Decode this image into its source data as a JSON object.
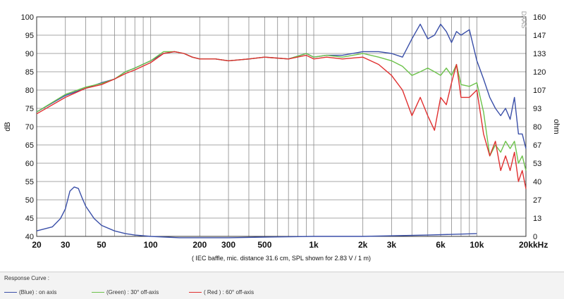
{
  "chart_data": {
    "type": "line",
    "xlabel_unit": "kHz",
    "x_ticks": [
      "20",
      "30",
      "50",
      "100",
      "200",
      "300",
      "500",
      "1k",
      "2k",
      "3k",
      "6k",
      "10k",
      "20k"
    ],
    "x_tick_values": [
      20,
      30,
      50,
      100,
      200,
      300,
      500,
      1000,
      2000,
      3000,
      6000,
      10000,
      20000
    ],
    "ylabel_left": "dB",
    "ylabel_right": "ohm",
    "ylim_left": [
      40,
      100
    ],
    "ylim_right": [
      0,
      160
    ],
    "y_ticks_left": [
      40,
      45,
      50,
      55,
      60,
      65,
      70,
      75,
      80,
      85,
      90,
      95,
      100
    ],
    "y_ticks_right": [
      0,
      13,
      27,
      40,
      53,
      67,
      80,
      93,
      107,
      120,
      133,
      147,
      160
    ],
    "note": "( IEC baffle, mic. distance 31.6 cm, SPL shown for 2.83 V / 1 m)",
    "watermark": "DAAS",
    "grid": true,
    "x_scale": "log",
    "series": [
      {
        "name": "(Blue) : on axis",
        "color": "#3a4fa8",
        "axis": "left",
        "points": [
          [
            20,
            74
          ],
          [
            30,
            78.5
          ],
          [
            40,
            80.5
          ],
          [
            50,
            82
          ],
          [
            60,
            83
          ],
          [
            70,
            85
          ],
          [
            80,
            86
          ],
          [
            100,
            88
          ],
          [
            120,
            90
          ],
          [
            140,
            90.5
          ],
          [
            160,
            90
          ],
          [
            180,
            89
          ],
          [
            200,
            88.5
          ],
          [
            250,
            88.5
          ],
          [
            300,
            88
          ],
          [
            400,
            88.5
          ],
          [
            500,
            89
          ],
          [
            700,
            88.5
          ],
          [
            900,
            90
          ],
          [
            1000,
            89
          ],
          [
            1200,
            89.5
          ],
          [
            1500,
            89.5
          ],
          [
            2000,
            90.5
          ],
          [
            2500,
            90.5
          ],
          [
            3000,
            90
          ],
          [
            3500,
            89
          ],
          [
            4000,
            94
          ],
          [
            4500,
            98
          ],
          [
            5000,
            94
          ],
          [
            5500,
            95
          ],
          [
            6000,
            98
          ],
          [
            6500,
            96
          ],
          [
            7000,
            93
          ],
          [
            7500,
            96
          ],
          [
            8000,
            95
          ],
          [
            9000,
            96.5
          ],
          [
            10000,
            88
          ],
          [
            11000,
            83
          ],
          [
            12000,
            78
          ],
          [
            13000,
            75
          ],
          [
            14000,
            73
          ],
          [
            15000,
            75
          ],
          [
            16000,
            72
          ],
          [
            17000,
            78
          ],
          [
            18000,
            68
          ],
          [
            19000,
            68
          ],
          [
            20000,
            64
          ]
        ]
      },
      {
        "name": "(Green) : 30° off-axis",
        "color": "#6cc24a",
        "axis": "left",
        "points": [
          [
            20,
            74
          ],
          [
            30,
            78.8
          ],
          [
            40,
            80.8
          ],
          [
            50,
            81.8
          ],
          [
            60,
            83
          ],
          [
            70,
            85
          ],
          [
            80,
            86
          ],
          [
            100,
            88
          ],
          [
            120,
            90.5
          ],
          [
            140,
            90.5
          ],
          [
            160,
            90
          ],
          [
            180,
            89
          ],
          [
            200,
            88.5
          ],
          [
            250,
            88.5
          ],
          [
            300,
            88
          ],
          [
            400,
            88.5
          ],
          [
            500,
            89
          ],
          [
            700,
            88.5
          ],
          [
            900,
            90
          ],
          [
            1000,
            89
          ],
          [
            1200,
            89.5
          ],
          [
            1500,
            89
          ],
          [
            2000,
            90
          ],
          [
            2500,
            89
          ],
          [
            3000,
            88
          ],
          [
            3500,
            86.5
          ],
          [
            4000,
            84
          ],
          [
            4500,
            85
          ],
          [
            5000,
            86
          ],
          [
            5500,
            85
          ],
          [
            6000,
            84
          ],
          [
            6500,
            86
          ],
          [
            7000,
            84
          ],
          [
            7500,
            87
          ],
          [
            8000,
            81.5
          ],
          [
            9000,
            81
          ],
          [
            10000,
            82
          ],
          [
            11000,
            74
          ],
          [
            12000,
            62
          ],
          [
            13000,
            65
          ],
          [
            14000,
            63
          ],
          [
            15000,
            66
          ],
          [
            16000,
            64
          ],
          [
            17000,
            66
          ],
          [
            18000,
            60
          ],
          [
            19000,
            62
          ],
          [
            20000,
            58
          ]
        ]
      },
      {
        "name": "( Red ) : 60° off-axis",
        "color": "#e03030",
        "axis": "left",
        "points": [
          [
            20,
            73.5
          ],
          [
            30,
            78
          ],
          [
            40,
            80.5
          ],
          [
            50,
            81.5
          ],
          [
            60,
            83
          ],
          [
            70,
            84.5
          ],
          [
            80,
            85.5
          ],
          [
            100,
            87.5
          ],
          [
            120,
            90
          ],
          [
            140,
            90.5
          ],
          [
            160,
            90
          ],
          [
            180,
            89
          ],
          [
            200,
            88.5
          ],
          [
            250,
            88.5
          ],
          [
            300,
            88
          ],
          [
            400,
            88.5
          ],
          [
            500,
            89
          ],
          [
            700,
            88.5
          ],
          [
            900,
            89.5
          ],
          [
            1000,
            88.5
          ],
          [
            1200,
            89
          ],
          [
            1500,
            88.5
          ],
          [
            2000,
            89
          ],
          [
            2500,
            87
          ],
          [
            3000,
            84
          ],
          [
            3500,
            80
          ],
          [
            4000,
            73
          ],
          [
            4500,
            78
          ],
          [
            5000,
            73
          ],
          [
            5500,
            69
          ],
          [
            6000,
            78
          ],
          [
            6500,
            76
          ],
          [
            7000,
            82
          ],
          [
            7500,
            87
          ],
          [
            8000,
            78
          ],
          [
            9000,
            78
          ],
          [
            10000,
            80
          ],
          [
            11000,
            68
          ],
          [
            12000,
            62
          ],
          [
            13000,
            66
          ],
          [
            14000,
            58
          ],
          [
            15000,
            62
          ],
          [
            16000,
            58
          ],
          [
            17000,
            63
          ],
          [
            18000,
            55
          ],
          [
            19000,
            58
          ],
          [
            20000,
            53
          ]
        ]
      },
      {
        "name": "Impedance",
        "color": "#3a4fa8",
        "axis": "right",
        "points": [
          [
            20,
            4
          ],
          [
            25,
            7
          ],
          [
            28,
            13
          ],
          [
            30,
            20
          ],
          [
            32,
            33
          ],
          [
            34,
            36
          ],
          [
            36,
            35
          ],
          [
            38,
            28
          ],
          [
            40,
            22
          ],
          [
            45,
            13
          ],
          [
            50,
            8
          ],
          [
            60,
            4
          ],
          [
            70,
            2
          ],
          [
            80,
            1
          ],
          [
            100,
            0
          ],
          [
            150,
            -1
          ],
          [
            200,
            -1
          ],
          [
            300,
            -1
          ],
          [
            500,
            -0.5
          ],
          [
            1000,
            0
          ],
          [
            2000,
            0
          ],
          [
            5000,
            1
          ],
          [
            10000,
            2
          ]
        ]
      }
    ]
  },
  "legend": {
    "title": "Response Curve :",
    "items": [
      {
        "label": "(Blue) : on axis",
        "color": "#3a4fa8"
      },
      {
        "label": "(Green) : 30° off-axis",
        "color": "#6cc24a"
      },
      {
        "label": "( Red ) : 60° off-axis",
        "color": "#e03030"
      }
    ]
  }
}
